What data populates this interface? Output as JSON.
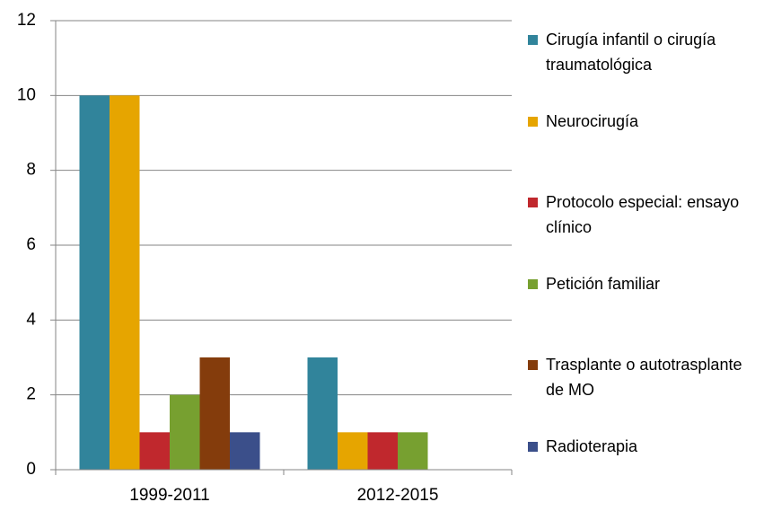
{
  "chart_data": {
    "type": "bar",
    "categories": [
      "1999-2011",
      "2012-2015"
    ],
    "series": [
      {
        "name": "Cirugía infantil o cirugía traumatológica",
        "color": "#31849b",
        "values": [
          10,
          3
        ]
      },
      {
        "name": "Neurocirugía",
        "color": "#e6a500",
        "values": [
          10,
          1
        ]
      },
      {
        "name": "Protocolo especial: ensayo clínico",
        "color": "#c0282d",
        "values": [
          1,
          1
        ]
      },
      {
        "name": "Petición familiar",
        "color": "#77a030",
        "values": [
          2,
          1
        ]
      },
      {
        "name": "Trasplante o autotrasplante de MO",
        "color": "#843c0c",
        "values": [
          3,
          null
        ]
      },
      {
        "name": "Radioterapia",
        "color": "#3b4f8a",
        "values": [
          1,
          null
        ]
      }
    ],
    "ylim": [
      0,
      12
    ],
    "yticks": [
      0,
      2,
      4,
      6,
      8,
      10,
      12
    ],
    "grid": true,
    "legend": "right"
  }
}
